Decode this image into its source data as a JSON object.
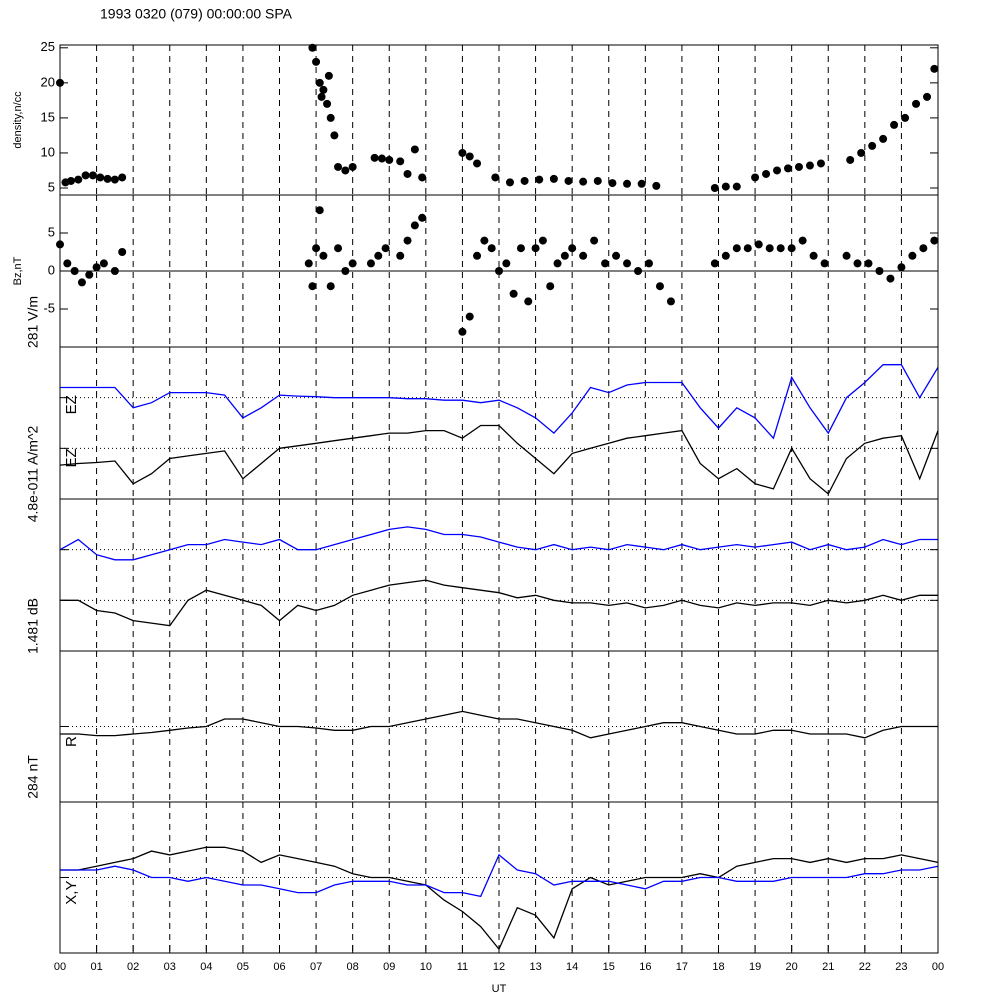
{
  "chart_data": [
    {
      "type": "scatter",
      "title": "1993 0320 (079) 00:00:00 SPA",
      "ylabel": "density,n/cc",
      "xlim": [
        0,
        24
      ],
      "ylim": [
        4,
        25.4
      ],
      "yticks": [
        5,
        10,
        15,
        20,
        25
      ],
      "series": [
        {
          "color": "#000000",
          "x": [
            0,
            0.15,
            0.3,
            0.5,
            0.7,
            0.9,
            1.1,
            1.3,
            1.5,
            1.7,
            6.9,
            7.0,
            7.1,
            7.15,
            7.2,
            7.3,
            7.35,
            7.4,
            7.5,
            7.6,
            7.8,
            8.0,
            8.6,
            8.8,
            9.0,
            9.3,
            9.5,
            9.7,
            9.9,
            11.0,
            11.2,
            11.4,
            11.9,
            12.3,
            12.7,
            13.1,
            13.5,
            13.9,
            14.3,
            14.7,
            15.1,
            15.5,
            15.9,
            16.3,
            17.9,
            18.2,
            18.5,
            19.0,
            19.3,
            19.6,
            19.9,
            20.2,
            20.5,
            20.8,
            21.6,
            21.9,
            22.2,
            22.5,
            22.8,
            23.1,
            23.4,
            23.7,
            23.9
          ],
          "values": [
            20,
            5.8,
            6,
            6.2,
            6.8,
            6.8,
            6.5,
            6.3,
            6.2,
            6.5,
            25,
            23,
            20,
            18,
            19,
            17,
            21,
            15,
            12.5,
            8,
            7.5,
            8,
            9.3,
            9.2,
            9,
            8.8,
            7,
            10.5,
            6.5,
            10,
            9.5,
            8.5,
            6.5,
            5.8,
            6,
            6.2,
            6.3,
            6,
            5.9,
            6,
            5.7,
            5.6,
            5.6,
            5.3,
            5,
            5.2,
            5.2,
            6.5,
            7,
            7.5,
            7.8,
            8,
            8.2,
            8.5,
            9,
            10,
            11,
            12,
            14,
            15,
            17,
            18,
            22
          ]
        }
      ]
    },
    {
      "type": "scatter",
      "ylabel": "Bz,nT",
      "xlim": [
        0,
        24
      ],
      "ylim": [
        -10,
        10
      ],
      "yticks": [
        -5,
        0,
        5
      ],
      "hlines": [
        0
      ],
      "hline_style": "solid",
      "series": [
        {
          "color": "#000000",
          "x": [
            0,
            0.2,
            0.4,
            0.6,
            0.8,
            1.0,
            1.2,
            1.5,
            1.7,
            6.8,
            6.9,
            7.0,
            7.1,
            7.2,
            7.4,
            7.6,
            7.8,
            8.0,
            8.5,
            8.7,
            8.9,
            9.3,
            9.5,
            9.7,
            9.9,
            11.0,
            11.2,
            11.4,
            11.6,
            11.8,
            12.0,
            12.2,
            12.4,
            12.6,
            12.8,
            13.0,
            13.2,
            13.4,
            13.6,
            13.8,
            14.0,
            14.3,
            14.6,
            14.9,
            15.2,
            15.5,
            15.8,
            16.1,
            16.4,
            16.7,
            17.9,
            18.2,
            18.5,
            18.8,
            19.1,
            19.4,
            19.7,
            20.0,
            20.3,
            20.6,
            20.9,
            21.5,
            21.8,
            22.1,
            22.4,
            22.7,
            23.0,
            23.3,
            23.6,
            23.9
          ],
          "values": [
            3.5,
            1,
            0,
            -1.5,
            -0.5,
            0.5,
            1,
            0,
            2.5,
            1,
            -2,
            3,
            8,
            2,
            -2,
            3,
            0,
            1,
            1,
            2,
            3,
            2,
            4,
            6,
            7,
            -8,
            -6,
            2,
            4,
            3,
            0,
            1,
            -3,
            3,
            -4,
            3,
            4,
            -2,
            1,
            2,
            3,
            2,
            4,
            1,
            2,
            1,
            0,
            1,
            -2,
            -4,
            1,
            2,
            3,
            3,
            3.5,
            3,
            3,
            3,
            4,
            2,
            1,
            2,
            1,
            1,
            0,
            -1,
            0.5,
            2,
            3,
            4
          ]
        }
      ]
    },
    {
      "type": "line",
      "scale_label": "281 V/m",
      "xlim": [
        0,
        24
      ],
      "ylim": [
        0,
        3
      ],
      "hlines": [
        1,
        2
      ],
      "hline_style": "dotted",
      "x": [
        0,
        0.5,
        1,
        1.5,
        2,
        2.5,
        3,
        3.5,
        4,
        4.5,
        5,
        5.5,
        6,
        6.5,
        7,
        7.5,
        8,
        8.5,
        9,
        9.5,
        10,
        10.5,
        11,
        11.5,
        12,
        12.5,
        13,
        13.5,
        14,
        14.5,
        15,
        15.5,
        16,
        16.5,
        17,
        17.5,
        18,
        18.5,
        19,
        19.5,
        20,
        20.5,
        21,
        21.5,
        22,
        22.5,
        23,
        23.5,
        24
      ],
      "series": [
        {
          "name": "EZ",
          "color": "#0000ff",
          "values": [
            2.2,
            2.2,
            2.2,
            2.2,
            1.8,
            1.9,
            2.1,
            2.1,
            2.1,
            2.05,
            1.6,
            1.8,
            2.05,
            2.03,
            2.02,
            2.0,
            2.0,
            2.0,
            2.0,
            1.98,
            1.98,
            1.95,
            1.95,
            1.9,
            1.95,
            1.8,
            1.6,
            1.3,
            1.7,
            2.2,
            2.1,
            2.25,
            2.3,
            2.3,
            2.3,
            1.8,
            1.4,
            1.8,
            1.6,
            1.2,
            2.4,
            1.8,
            1.3,
            2.0,
            2.3,
            2.65,
            2.65,
            2.0,
            2.6
          ]
        },
        {
          "name": "EZ",
          "color": "#000000",
          "values": [
            0.67,
            0.7,
            0.72,
            0.75,
            0.3,
            0.5,
            0.8,
            0.85,
            0.9,
            0.95,
            0.4,
            0.7,
            1.0,
            1.05,
            1.1,
            1.15,
            1.2,
            1.25,
            1.3,
            1.3,
            1.35,
            1.35,
            1.2,
            1.45,
            1.45,
            1.1,
            0.8,
            0.5,
            0.9,
            1.0,
            1.1,
            1.2,
            1.25,
            1.3,
            1.35,
            0.7,
            0.4,
            0.6,
            0.3,
            0.2,
            1.0,
            0.4,
            0.1,
            0.8,
            1.1,
            1.2,
            1.25,
            0.4,
            1.35
          ]
        }
      ]
    },
    {
      "type": "line",
      "scale_label": "4.8e-011 A/m^2",
      "xlim": [
        0,
        24
      ],
      "ylim": [
        0,
        3
      ],
      "hlines": [
        1,
        2
      ],
      "hline_style": "dotted",
      "x": [
        0,
        0.5,
        1,
        1.5,
        2,
        2.5,
        3,
        3.5,
        4,
        4.5,
        5,
        5.5,
        6,
        6.5,
        7,
        7.5,
        8,
        8.5,
        9,
        9.5,
        10,
        10.5,
        11,
        11.5,
        12,
        12.5,
        13,
        13.5,
        14,
        14.5,
        15,
        15.5,
        16,
        16.5,
        17,
        17.5,
        18,
        18.5,
        19,
        19.5,
        20,
        20.5,
        21,
        21.5,
        22,
        22.5,
        23,
        23.5,
        24
      ],
      "series": [
        {
          "color": "#0000ff",
          "values": [
            2.0,
            2.2,
            1.9,
            1.8,
            1.8,
            1.9,
            2.0,
            2.1,
            2.1,
            2.2,
            2.15,
            2.1,
            2.2,
            2.0,
            2.0,
            2.1,
            2.2,
            2.3,
            2.4,
            2.45,
            2.4,
            2.3,
            2.3,
            2.25,
            2.15,
            2.05,
            2.0,
            2.1,
            2.0,
            2.05,
            2.0,
            2.1,
            2.05,
            2.0,
            2.1,
            2.0,
            2.05,
            2.1,
            2.05,
            2.1,
            2.15,
            2.0,
            2.1,
            2.0,
            2.05,
            2.2,
            2.1,
            2.2,
            2.2
          ]
        },
        {
          "color": "#000000",
          "values": [
            1.0,
            1.0,
            0.8,
            0.75,
            0.6,
            0.55,
            0.5,
            1.0,
            1.2,
            1.1,
            1.0,
            0.9,
            0.6,
            0.9,
            0.8,
            0.9,
            1.1,
            1.2,
            1.3,
            1.35,
            1.4,
            1.3,
            1.25,
            1.2,
            1.15,
            1.05,
            1.1,
            1.0,
            0.95,
            0.95,
            0.9,
            0.95,
            0.85,
            0.9,
            1.0,
            0.9,
            0.85,
            0.95,
            0.9,
            0.95,
            0.95,
            0.9,
            1.0,
            0.95,
            1.0,
            1.1,
            1.0,
            1.1,
            1.1
          ]
        }
      ]
    },
    {
      "type": "line",
      "scale_label": "1.481 dB",
      "ylabel": "R",
      "xlim": [
        0,
        24
      ],
      "ylim": [
        0,
        2
      ],
      "hlines": [
        1
      ],
      "hline_style": "dotted",
      "x": [
        0,
        0.5,
        1,
        1.5,
        2,
        2.5,
        3,
        3.5,
        4,
        4.5,
        5,
        5.5,
        6,
        6.5,
        7,
        7.5,
        8,
        8.5,
        9,
        9.5,
        10,
        10.5,
        11,
        11.5,
        12,
        12.5,
        13,
        13.5,
        14,
        14.5,
        15,
        15.5,
        16,
        16.5,
        17,
        17.5,
        18,
        18.5,
        19,
        19.5,
        20,
        20.5,
        21,
        21.5,
        22,
        22.5,
        23,
        23.5,
        24
      ],
      "series": [
        {
          "color": "#000000",
          "values": [
            0.9,
            0.9,
            0.88,
            0.88,
            0.9,
            0.92,
            0.95,
            0.98,
            1.0,
            1.1,
            1.1,
            1.05,
            1.0,
            1.0,
            0.98,
            0.95,
            0.95,
            1.0,
            1.0,
            1.05,
            1.1,
            1.15,
            1.2,
            1.15,
            1.1,
            1.1,
            1.05,
            1.0,
            0.95,
            0.85,
            0.9,
            0.95,
            1.0,
            1.05,
            1.05,
            1.0,
            0.95,
            0.9,
            0.9,
            0.95,
            0.95,
            0.9,
            0.9,
            0.9,
            0.85,
            0.95,
            1.0,
            1.0,
            1.0
          ]
        }
      ]
    },
    {
      "type": "line",
      "scale_label": "284 nT",
      "ylabel": "X,Y",
      "xlabel": "UT",
      "xlim": [
        0,
        24
      ],
      "ylim": [
        0,
        2
      ],
      "hlines": [
        1
      ],
      "hline_style": "dotted",
      "xticks": [
        {
          "value": 0,
          "label": "00"
        },
        {
          "value": 1,
          "label": "01"
        },
        {
          "value": 2,
          "label": "02"
        },
        {
          "value": 3,
          "label": "03"
        },
        {
          "value": 4,
          "label": "04"
        },
        {
          "value": 5,
          "label": "05"
        },
        {
          "value": 6,
          "label": "06"
        },
        {
          "value": 7,
          "label": "07"
        },
        {
          "value": 8,
          "label": "08"
        },
        {
          "value": 9,
          "label": "09"
        },
        10,
        11,
        12,
        13,
        14,
        15,
        16,
        17,
        18,
        19,
        20,
        21,
        22,
        23,
        {
          "value": 24,
          "label": "00"
        }
      ],
      "x": [
        0,
        0.5,
        1,
        1.5,
        2,
        2.5,
        3,
        3.5,
        4,
        4.5,
        5,
        5.5,
        6,
        6.5,
        7,
        7.5,
        8,
        8.5,
        9,
        9.5,
        10,
        10.5,
        11,
        11.5,
        12,
        12.5,
        13,
        13.5,
        14,
        14.5,
        15,
        15.5,
        16,
        16.5,
        17,
        17.5,
        18,
        18.5,
        19,
        19.5,
        20,
        20.5,
        21,
        21.5,
        22,
        22.5,
        23,
        23.5,
        24
      ],
      "series": [
        {
          "color": "#000000",
          "values": [
            1.1,
            1.1,
            1.15,
            1.2,
            1.25,
            1.35,
            1.3,
            1.35,
            1.4,
            1.4,
            1.35,
            1.2,
            1.3,
            1.25,
            1.2,
            1.15,
            1.05,
            1.0,
            1.0,
            0.95,
            0.9,
            0.7,
            0.55,
            0.35,
            0.05,
            0.6,
            0.5,
            0.2,
            0.85,
            1.0,
            0.9,
            0.95,
            1.0,
            1.0,
            1.0,
            1.05,
            1.0,
            1.15,
            1.2,
            1.25,
            1.25,
            1.2,
            1.25,
            1.2,
            1.25,
            1.25,
            1.3,
            1.25,
            1.2
          ]
        },
        {
          "color": "#0000ff",
          "values": [
            1.1,
            1.1,
            1.1,
            1.15,
            1.1,
            1.0,
            1.0,
            0.95,
            1.0,
            0.95,
            0.9,
            0.9,
            0.85,
            0.8,
            0.8,
            0.9,
            0.95,
            0.95,
            0.95,
            0.9,
            0.9,
            0.8,
            0.8,
            0.75,
            1.3,
            1.1,
            1.05,
            0.9,
            0.95,
            0.95,
            0.95,
            0.9,
            0.85,
            0.95,
            0.95,
            1.0,
            1.0,
            0.95,
            0.95,
            0.95,
            1.0,
            1.0,
            1.0,
            1.0,
            1.05,
            1.05,
            1.1,
            1.1,
            1.15
          ]
        }
      ]
    }
  ]
}
